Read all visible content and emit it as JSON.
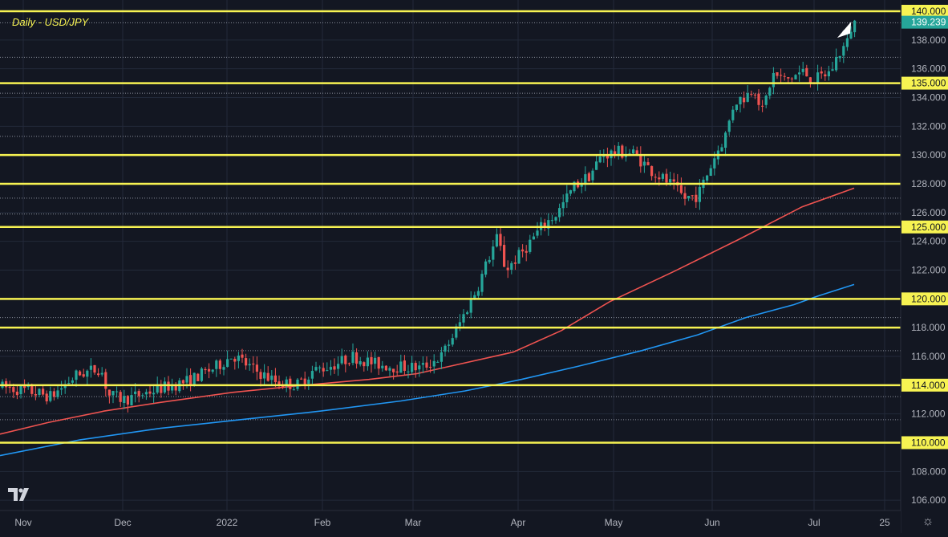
{
  "chart_data": {
    "type": "candlestick",
    "title": "Daily - USD/JPY",
    "xlabel": "",
    "ylabel": "",
    "x_ticks": [
      "Nov",
      "Dec",
      "2022",
      "Feb",
      "Mar",
      "Apr",
      "May",
      "Jun",
      "Jul",
      "25"
    ],
    "y_ticks": [
      106,
      108,
      110,
      112,
      114,
      116,
      118,
      120,
      122,
      124,
      126,
      128,
      130,
      132,
      134,
      136,
      138,
      140
    ],
    "ylim": [
      105.5,
      140.5
    ],
    "last_price": 139.239,
    "levels": [
      {
        "value": 140,
        "label": "140.000",
        "highlight": true
      },
      {
        "value": 135,
        "label": "135.000",
        "highlight": true
      },
      {
        "value": 130,
        "label": "130.000",
        "highlight": false
      },
      {
        "value": 128,
        "label": "128.000",
        "highlight": false
      },
      {
        "value": 125,
        "label": "125.000",
        "highlight": true
      },
      {
        "value": 120,
        "label": "120.000",
        "highlight": true
      },
      {
        "value": 118,
        "label": "118.000",
        "highlight": false
      },
      {
        "value": 114,
        "label": "114.000",
        "highlight": true
      },
      {
        "value": 110,
        "label": "110.000",
        "highlight": true
      }
    ],
    "dotted_levels": [
      139.2,
      136.8,
      134.3,
      131.3,
      127.0,
      125.9,
      118.7,
      116.4,
      113.2,
      111.6
    ],
    "series": [
      {
        "color": "#ef5350",
        "values": [
          110.6,
          111.4,
          112.2,
          112.8,
          113.5,
          114.0,
          114.4,
          114.8,
          115.3,
          116.3,
          117.8,
          119.8,
          121.9,
          124.1,
          126.4,
          127.7
        ]
      },
      {
        "color": "#2196f3",
        "values": [
          109.1,
          110.2,
          111.0,
          111.6,
          112.2,
          112.9,
          113.6,
          114.4,
          115.3,
          116.4,
          117.5,
          118.7,
          119.6,
          120.2,
          121.0
        ]
      }
    ],
    "colors": {
      "up": "#26a69a",
      "down": "#ef5350",
      "level": "#f7f352",
      "background": "#131722",
      "grid": "#232a3a"
    },
    "legend": "none",
    "grid": true
  }
}
